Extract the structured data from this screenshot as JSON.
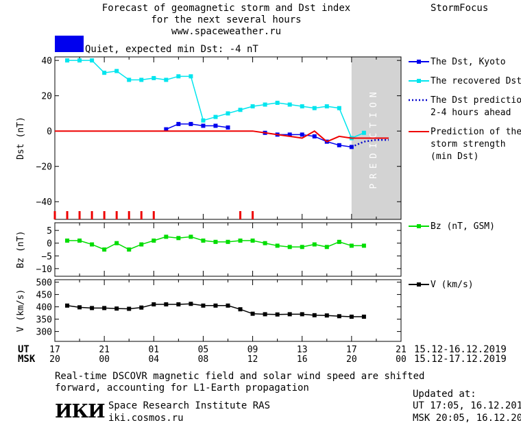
{
  "header": {
    "title_line1": "Forecast of geomagnetic storm and Dst index",
    "title_line2": "for the next several hours",
    "site": "www.spaceweather.ru",
    "brand": "StormFocus"
  },
  "status": {
    "text": "Quiet, expected min Dst: -4 nT",
    "color": "#0000ee"
  },
  "prediction_label": "PREDICTION",
  "time_axis": {
    "ut_label": "UT",
    "msk_label": "MSK",
    "ut_ticks": [
      "17",
      "21",
      "01",
      "05",
      "09",
      "13",
      "17",
      "21"
    ],
    "msk_ticks": [
      "20",
      "00",
      "04",
      "08",
      "12",
      "16",
      "20",
      "00"
    ],
    "ut_range": "15.12-16.12.2019",
    "msk_range": "15.12-17.12.2019"
  },
  "footer": {
    "note_line1": "Real-time DSCOVR magnetic field and solar wind speed are shifted",
    "note_line2": "forward, accounting for L1-Earth propagation",
    "logo_text": "ИКИ",
    "institute": "Space Research Institute RAS",
    "url": "iki.cosmos.ru",
    "updated_label": "Updated at:",
    "updated_ut": "UT   17:05, 16.12.2019",
    "updated_msk": "MSK 20:05, 16.12.2019"
  },
  "chart_data": [
    {
      "type": "line",
      "ylabel": "Dst (nT)",
      "ylim": [
        -50,
        42
      ],
      "yticks": [
        40,
        20,
        0,
        -20,
        -40
      ],
      "x_unit": "hours since 17 UT 15.12.2019",
      "xlim": [
        0,
        28
      ],
      "prediction_start": 24,
      "series": [
        {
          "name": "The Dst, Kyoto",
          "color": "#0000ee",
          "marker": "square",
          "segments": [
            {
              "x": [
                9,
                10,
                11,
                12,
                13,
                14
              ],
              "y": [
                1,
                4,
                4,
                3,
                3,
                2
              ]
            },
            {
              "x": [
                17,
                18,
                19,
                20,
                21,
                22,
                23,
                24
              ],
              "y": [
                -1,
                -2,
                -2,
                -2,
                -3,
                -6,
                -8,
                -9
              ]
            }
          ]
        },
        {
          "name": "The recovered Dst",
          "color": "#00e5ee",
          "marker": "square",
          "x": [
            1,
            2,
            3,
            4,
            5,
            6,
            7,
            8,
            9,
            10,
            11,
            12,
            13,
            14,
            15,
            16,
            17,
            18,
            19,
            20,
            21,
            22,
            23,
            24,
            25
          ],
          "y": [
            40,
            40,
            40,
            33,
            34,
            29,
            29,
            30,
            29,
            31,
            31,
            6,
            8,
            10,
            12,
            14,
            15,
            16,
            15,
            14,
            13,
            14,
            13,
            -4,
            -1
          ]
        },
        {
          "name": "The Dst prediction 2-4 hours ahead",
          "color": "#0000cc",
          "style": "dotted",
          "x": [
            24,
            25,
            26,
            27
          ],
          "y": [
            -9,
            -6,
            -5,
            -5
          ]
        },
        {
          "name": "Prediction of the storm strength (min Dst)",
          "color": "#ee0000",
          "x": [
            0,
            16,
            17,
            18,
            19,
            20,
            21,
            22,
            23,
            24,
            25,
            26,
            27
          ],
          "y": [
            0,
            0,
            -1,
            -2,
            -3,
            -4,
            0,
            -6,
            -3,
            -4,
            -4,
            -4,
            -4
          ]
        }
      ],
      "storm_ticks_x": [
        0,
        1,
        2,
        3,
        4,
        5,
        6,
        7,
        8,
        15,
        16
      ],
      "legend": [
        {
          "line1": "The Dst, Kyoto",
          "line2": "",
          "line3": ""
        },
        {
          "line1": "The recovered Dst",
          "line2": "",
          "line3": ""
        },
        {
          "line1": "The Dst prediction",
          "line2": "2-4 hours ahead",
          "line3": ""
        },
        {
          "line1": "Prediction of the",
          "line2": "storm strength",
          "line3": "(min Dst)"
        }
      ]
    },
    {
      "type": "line",
      "ylabel": "Bz (nT)",
      "ylim": [
        -13,
        8
      ],
      "yticks": [
        5,
        0,
        -5,
        -10
      ],
      "series": [
        {
          "name": "Bz (nT, GSM)",
          "color": "#00dd00",
          "marker": "square",
          "x": [
            1,
            2,
            3,
            4,
            5,
            6,
            7,
            8,
            9,
            10,
            11,
            12,
            13,
            14,
            15,
            16,
            17,
            18,
            19,
            20,
            21,
            22,
            23,
            24,
            25
          ],
          "y": [
            1,
            1,
            -0.5,
            -2.5,
            0,
            -2.5,
            -0.5,
            1,
            2.5,
            2,
            2.5,
            1,
            0.5,
            0.5,
            1,
            1,
            0,
            -1,
            -1.5,
            -1.5,
            -0.5,
            -1.5,
            0.5,
            -1,
            -1
          ]
        }
      ],
      "legend": [
        {
          "line1": "Bz (nT, GSM)",
          "line2": "",
          "line3": ""
        }
      ]
    },
    {
      "type": "line",
      "ylabel": "V (km/s)",
      "ylim": [
        260,
        510
      ],
      "yticks": [
        500,
        450,
        400,
        350,
        300
      ],
      "series": [
        {
          "name": "V (km/s)",
          "color": "#000000",
          "marker": "square",
          "x": [
            1,
            2,
            3,
            4,
            5,
            6,
            7,
            8,
            9,
            10,
            11,
            12,
            13,
            14,
            15,
            16,
            17,
            18,
            19,
            20,
            21,
            22,
            23,
            24,
            25
          ],
          "y": [
            405,
            398,
            395,
            395,
            393,
            392,
            397,
            410,
            410,
            410,
            412,
            405,
            405,
            405,
            390,
            372,
            370,
            369,
            370,
            370,
            366,
            365,
            362,
            360,
            360
          ]
        }
      ],
      "legend": [
        {
          "line1": "V (km/s)",
          "line2": "",
          "line3": ""
        }
      ]
    }
  ]
}
